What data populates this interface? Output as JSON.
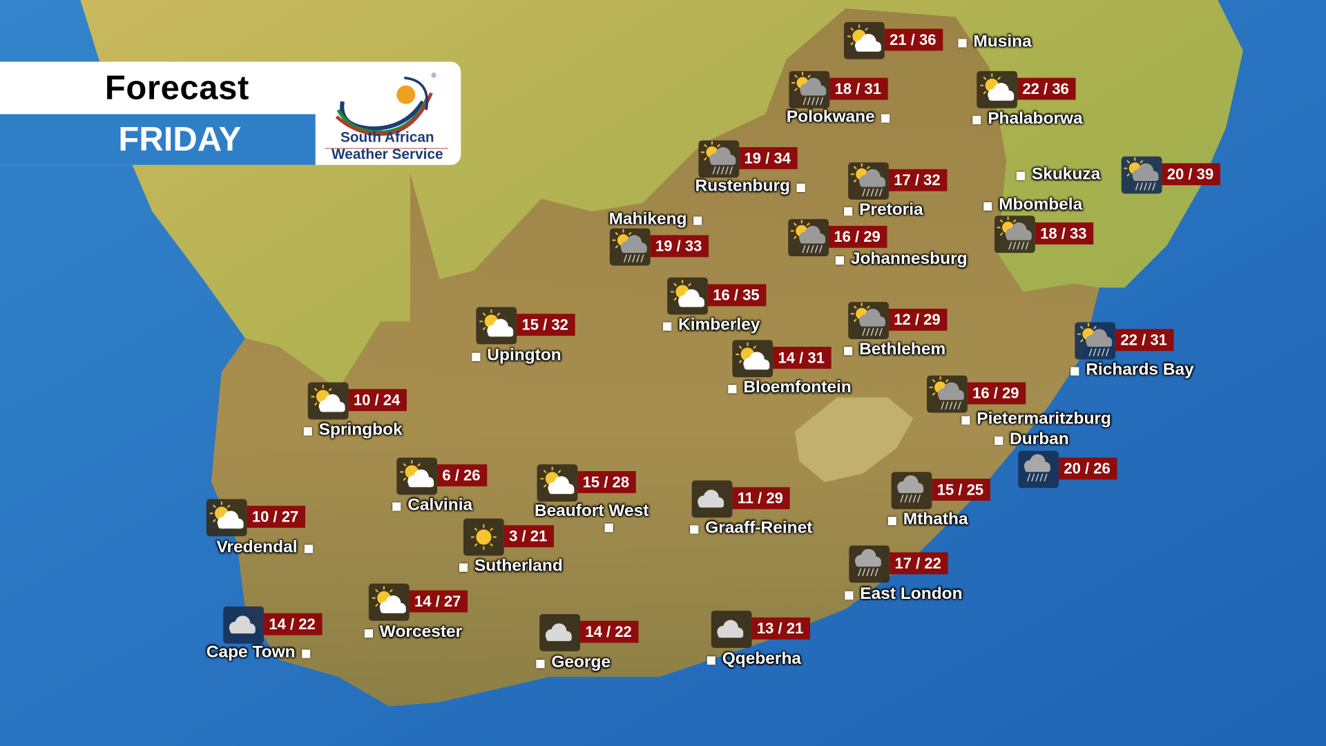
{
  "header": {
    "title": "Forecast",
    "day": "FRIDAY"
  },
  "logo": {
    "line1": "South African",
    "line2": "Weather Service",
    "mark": "®"
  },
  "colors": {
    "ocean": "#2f7fc8",
    "temp_bg": "#8e0c0c",
    "header_blue": "#2f7fc8"
  },
  "stations": [
    {
      "name": "Musina",
      "low": 21,
      "high": 36,
      "temp": "21 / 36",
      "icon": "partly-cloudy-icon"
    },
    {
      "name": "Polokwane",
      "low": 18,
      "high": 31,
      "temp": "18 / 31",
      "icon": "thundershower-icon"
    },
    {
      "name": "Phalaborwa",
      "low": 22,
      "high": 36,
      "temp": "22 / 36",
      "icon": "partly-cloudy-icon"
    },
    {
      "name": "Rustenburg",
      "low": 19,
      "high": 34,
      "temp": "19 / 34",
      "icon": "thundershower-icon"
    },
    {
      "name": "Pretoria",
      "low": 17,
      "high": 32,
      "temp": "17 / 32",
      "icon": "thundershower-icon"
    },
    {
      "name": "Skukuza",
      "low": 20,
      "high": 39,
      "temp": "20 / 39",
      "icon": "thundershower-icon"
    },
    {
      "name": "Mbombela",
      "low": 18,
      "high": 33,
      "temp": "18 / 33",
      "icon": "thundershower-icon"
    },
    {
      "name": "Mahikeng",
      "low": 19,
      "high": 33,
      "temp": "19 / 33",
      "icon": "thundershower-icon"
    },
    {
      "name": "Johannesburg",
      "low": 16,
      "high": 29,
      "temp": "16 / 29",
      "icon": "thundershower-icon"
    },
    {
      "name": "Kimberley",
      "low": 16,
      "high": 35,
      "temp": "16 / 35",
      "icon": "partly-cloudy-icon"
    },
    {
      "name": "Upington",
      "low": 15,
      "high": 32,
      "temp": "15 / 32",
      "icon": "partly-cloudy-icon"
    },
    {
      "name": "Bethlehem",
      "low": 12,
      "high": 29,
      "temp": "12 / 29",
      "icon": "thundershower-icon"
    },
    {
      "name": "Bloemfontein",
      "low": 14,
      "high": 31,
      "temp": "14 / 31",
      "icon": "partly-cloudy-icon"
    },
    {
      "name": "Richards Bay",
      "low": 22,
      "high": 31,
      "temp": "22 / 31",
      "icon": "thundershower-icon"
    },
    {
      "name": "Springbok",
      "low": 10,
      "high": 24,
      "temp": "10 / 24",
      "icon": "partly-cloudy-icon"
    },
    {
      "name": "Pietermaritzburg",
      "low": 16,
      "high": 29,
      "temp": "16 / 29",
      "icon": "thundershower-icon"
    },
    {
      "name": "Durban",
      "low": 20,
      "high": 26,
      "temp": "20 / 26",
      "icon": "rain-icon"
    },
    {
      "name": "Calvinia",
      "low": 6,
      "high": 26,
      "temp": "6 / 26",
      "icon": "partly-cloudy-icon"
    },
    {
      "name": "Beaufort West",
      "low": 15,
      "high": 28,
      "temp": "15 / 28",
      "icon": "partly-cloudy-icon"
    },
    {
      "name": "Vredendal",
      "low": 10,
      "high": 27,
      "temp": "10 / 27",
      "icon": "partly-cloudy-icon"
    },
    {
      "name": "Graaff-Reinet",
      "low": 11,
      "high": 29,
      "temp": "11 / 29",
      "icon": "cloudy-icon"
    },
    {
      "name": "Mthatha",
      "low": 15,
      "high": 25,
      "temp": "15 / 25",
      "icon": "rain-icon"
    },
    {
      "name": "Sutherland",
      "low": 3,
      "high": 21,
      "temp": "3 / 21",
      "icon": "sunny-icon"
    },
    {
      "name": "East London",
      "low": 17,
      "high": 22,
      "temp": "17 / 22",
      "icon": "rain-icon"
    },
    {
      "name": "Worcester",
      "low": 14,
      "high": 27,
      "temp": "14 / 27",
      "icon": "partly-cloudy-icon"
    },
    {
      "name": "Cape Town",
      "low": 14,
      "high": 22,
      "temp": "14 / 22",
      "icon": "cloudy-icon"
    },
    {
      "name": "George",
      "low": 14,
      "high": 22,
      "temp": "14 / 22",
      "icon": "cloudy-icon"
    },
    {
      "name": "Qqeberha",
      "low": 13,
      "high": 21,
      "temp": "13 / 21",
      "icon": "cloudy-icon"
    }
  ]
}
